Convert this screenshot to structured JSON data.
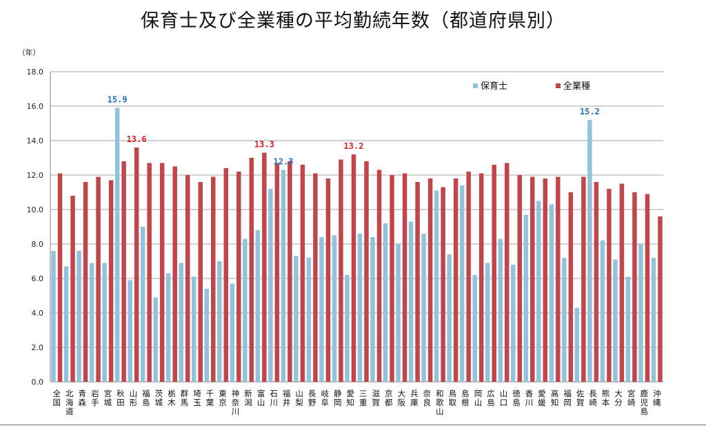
{
  "chart_data": {
    "type": "bar",
    "title": "保育士及び全業種の平均勤続年数（都道府県別）",
    "yunit": "（年）",
    "ylim": [
      0,
      18
    ],
    "yticks": [
      "0.0",
      "2.0",
      "4.0",
      "6.0",
      "8.0",
      "10.0",
      "12.0",
      "14.0",
      "16.0",
      "18.0"
    ],
    "grid": true,
    "legend_position": "top-right",
    "categories": [
      "全国",
      "北海道",
      "青森",
      "岩手",
      "宮城",
      "秋田",
      "山形",
      "福島",
      "茨城",
      "栃木",
      "群馬",
      "埼玉",
      "千葉",
      "東京",
      "神奈川",
      "新潟",
      "富山",
      "石川",
      "福井",
      "山梨",
      "長野",
      "岐阜",
      "静岡",
      "愛知",
      "三重",
      "滋賀",
      "京都",
      "大阪",
      "兵庫",
      "奈良",
      "和歌山",
      "鳥取",
      "島根",
      "岡山",
      "広島",
      "山口",
      "徳島",
      "香川",
      "愛媛",
      "高知",
      "福岡",
      "佐賀",
      "長崎",
      "熊本",
      "大分",
      "宮崎",
      "鹿児島",
      "沖縄"
    ],
    "series": [
      {
        "name": "保育士",
        "color": "#93c3da",
        "values": [
          7.6,
          6.7,
          7.6,
          6.9,
          6.9,
          15.9,
          5.9,
          9.0,
          4.9,
          6.3,
          6.9,
          6.1,
          5.4,
          7.0,
          5.7,
          8.3,
          8.8,
          11.2,
          12.3,
          7.3,
          7.2,
          8.4,
          8.5,
          6.2,
          8.6,
          8.4,
          9.2,
          8.0,
          9.3,
          8.6,
          11.1,
          7.4,
          11.4,
          6.2,
          6.9,
          8.3,
          6.8,
          9.7,
          10.5,
          10.3,
          7.2,
          4.3,
          15.2,
          8.2,
          7.1,
          6.1,
          8.0,
          7.2
        ]
      },
      {
        "name": "全業種",
        "color": "#c0464b",
        "values": [
          12.1,
          10.8,
          11.6,
          11.9,
          11.7,
          12.8,
          13.6,
          12.7,
          12.7,
          12.5,
          12.0,
          11.6,
          11.9,
          12.4,
          12.2,
          13.0,
          13.3,
          12.7,
          12.8,
          12.6,
          12.1,
          11.8,
          12.9,
          13.2,
          12.8,
          12.3,
          12.0,
          12.1,
          11.6,
          11.8,
          11.3,
          11.8,
          12.2,
          12.1,
          12.6,
          12.7,
          12.0,
          11.9,
          11.8,
          11.9,
          11.0,
          11.9,
          11.6,
          11.2,
          11.5,
          11.0,
          10.9,
          9.6
        ]
      }
    ],
    "annotations": [
      {
        "category": "秋田",
        "series": "保育士",
        "text": "15.9",
        "color": "#1f6fc0"
      },
      {
        "category": "山形",
        "series": "全業種",
        "text": "13.6",
        "color": "#e01b1b"
      },
      {
        "category": "富山",
        "series": "全業種",
        "text": "13.3",
        "color": "#e01b1b"
      },
      {
        "category": "福井",
        "series": "保育士",
        "text": "12.3",
        "color": "#1f6fc0"
      },
      {
        "category": "愛知",
        "series": "全業種",
        "text": "13.2",
        "color": "#e01b1b"
      },
      {
        "category": "長崎",
        "series": "保育士",
        "text": "15.2",
        "color": "#1f6fc0"
      }
    ]
  }
}
